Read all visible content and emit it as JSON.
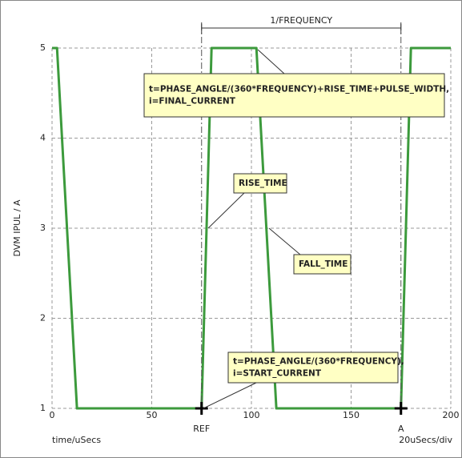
{
  "chart_data": {
    "type": "line",
    "ylabel": "DVM IPUL / A",
    "xlabel": "time/uSecs",
    "xscale_label": "20uSecs/div",
    "x": [
      0,
      2.5,
      12.5,
      75,
      80,
      102.5,
      112.5,
      175,
      180,
      200
    ],
    "series": [
      {
        "name": "IPUL",
        "color": "#3c9a3c",
        "values": [
          5,
          5,
          1,
          1,
          5,
          5,
          1,
          1,
          5,
          5
        ]
      }
    ],
    "xlim": [
      0,
      200
    ],
    "xticks": [
      0,
      50,
      100,
      150,
      200
    ],
    "ylim": [
      1,
      5
    ],
    "yticks": [
      1,
      2,
      3,
      4,
      5
    ],
    "grid": true,
    "cursors": [
      {
        "label": "REF",
        "x": 75
      },
      {
        "label": "A",
        "x": 175
      }
    ],
    "cursor_span_label": "1/FREQUENCY",
    "annotations": [
      {
        "lines": [
          "t=PHASE_ANGLE/(360*FREQUENCY)+RISE_TIME+PULSE_WIDTH,",
          "i=FINAL_CURRENT"
        ]
      },
      {
        "lines": [
          "RISE_TIME"
        ]
      },
      {
        "lines": [
          "FALL_TIME"
        ]
      },
      {
        "lines": [
          "t=PHASE_ANGLE/(360*FREQUENCY),",
          "i=START_CURRENT"
        ]
      }
    ]
  }
}
